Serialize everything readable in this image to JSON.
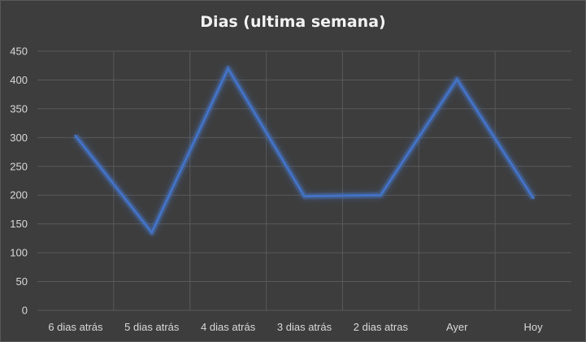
{
  "chart_data": {
    "type": "line",
    "title": "Dias (ultima semana)",
    "categories": [
      "6 dias atrás",
      "5 dias atrás",
      "4 dias atrás",
      "3 dias atrás",
      "2 dias atras",
      "Ayer",
      "Hoy"
    ],
    "series": [
      {
        "values": [
          303,
          135,
          420,
          198,
          200,
          401,
          195
        ]
      }
    ],
    "ylim": [
      0,
      450
    ],
    "yticks": [
      "0",
      "50",
      "100",
      "150",
      "200",
      "250",
      "300",
      "350",
      "400",
      "450"
    ],
    "grid": true,
    "legend": "none",
    "colors": {
      "background": "#3d3d3d",
      "grid": "#595959",
      "line": "#4472c4",
      "glow": "#4472c4",
      "text": "#d9d9d9",
      "title": "#f2f2f2"
    }
  }
}
